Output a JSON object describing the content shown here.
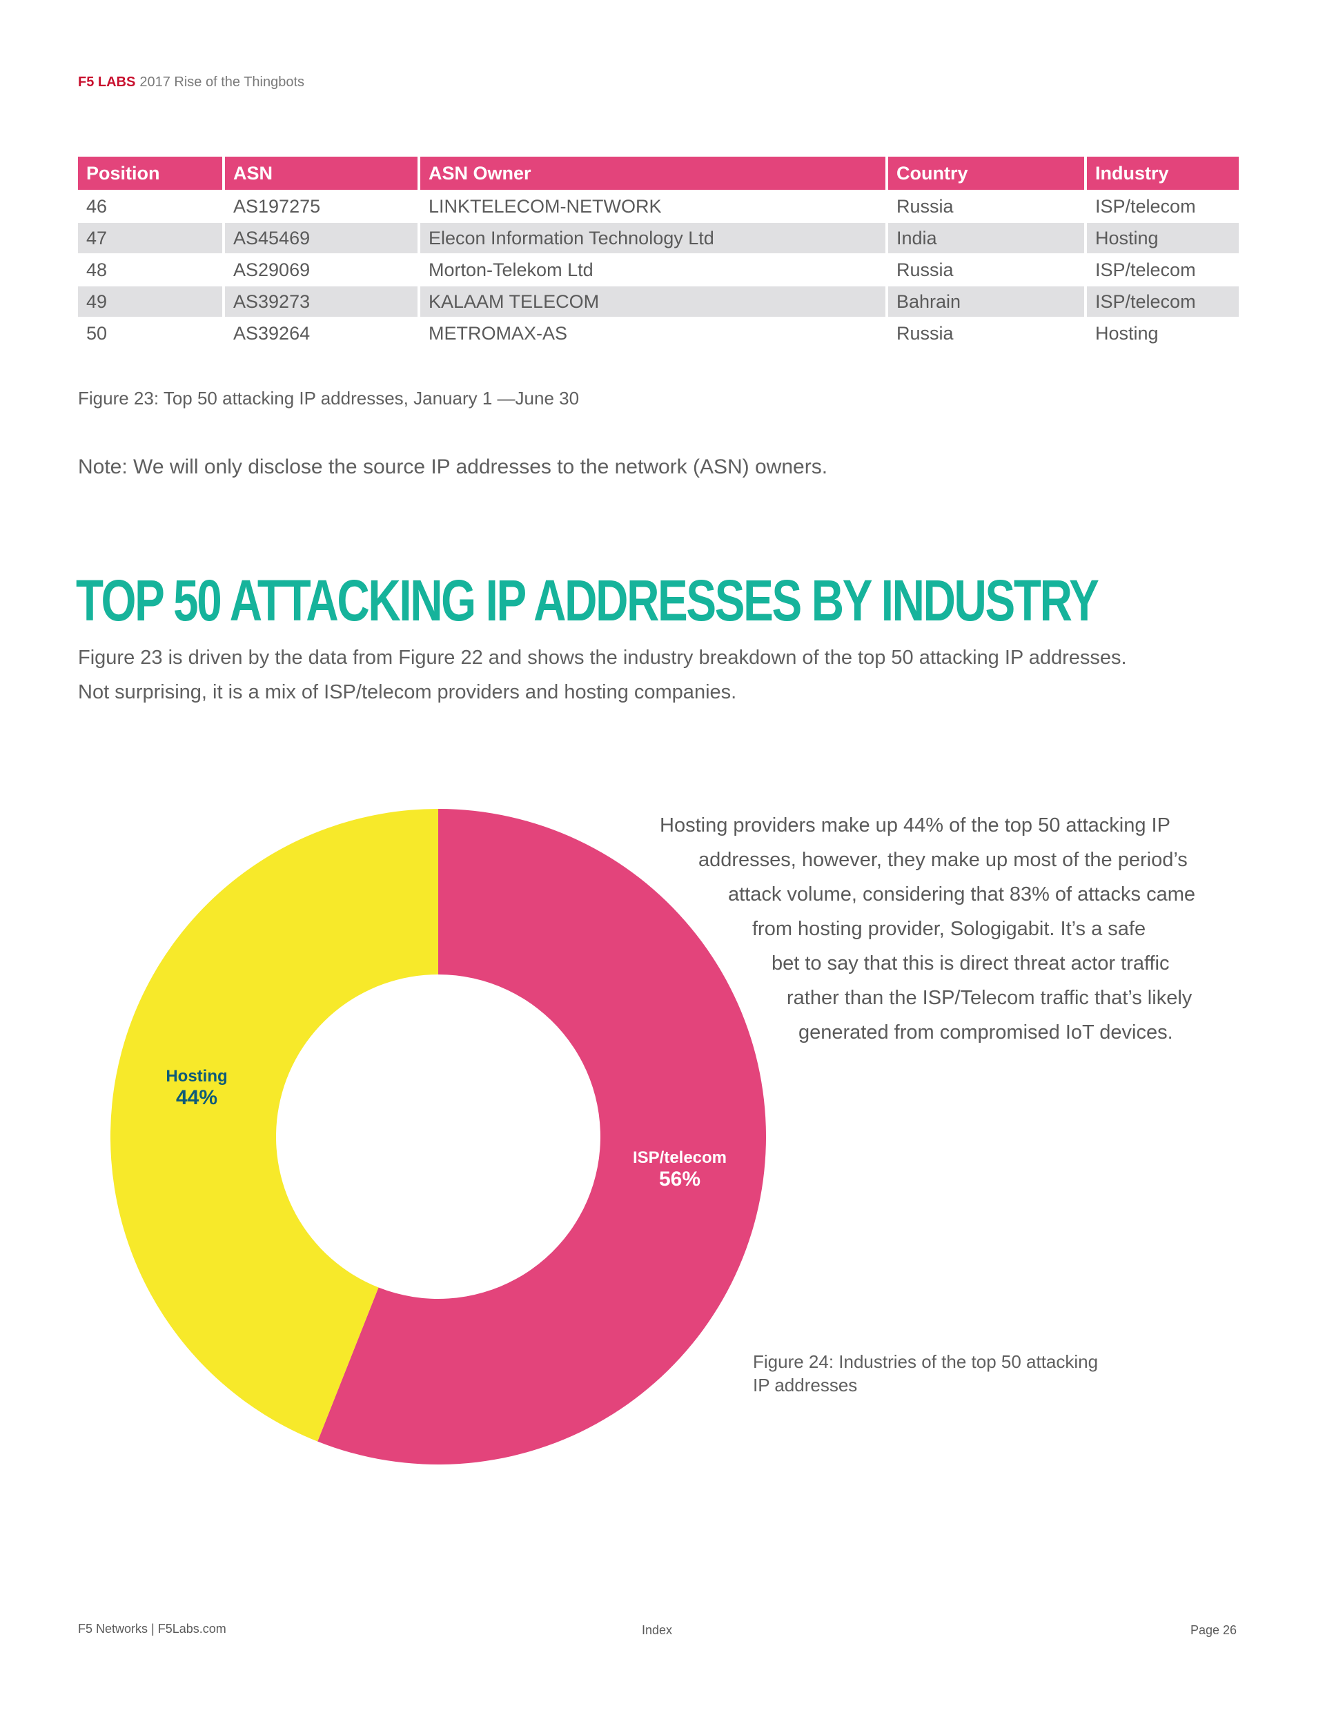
{
  "header": {
    "brand": "F5 LABS",
    "title": "2017 Rise of the Thingbots"
  },
  "table": {
    "columns": [
      "Position",
      "ASN",
      "ASN Owner",
      "Country",
      "Industry"
    ],
    "rows": [
      [
        "46",
        "AS197275",
        "LINKTELECOM-NETWORK",
        "Russia",
        "ISP/telecom"
      ],
      [
        "47",
        "AS45469",
        "Elecon Information Technology Ltd",
        "India",
        "Hosting"
      ],
      [
        "48",
        "AS29069",
        "Morton-Telekom Ltd",
        "Russia",
        "ISP/telecom"
      ],
      [
        "49",
        "AS39273",
        "KALAAM TELECOM",
        "Bahrain",
        "ISP/telecom"
      ],
      [
        "50",
        "AS39264",
        "METROMAX-AS",
        "Russia",
        "Hosting"
      ]
    ]
  },
  "figure23_caption": "Figure 23: Top 50 attacking IP addresses, January 1 —June 30",
  "note": "Note: We will only disclose the source IP addresses to the network (ASN) owners.",
  "section": {
    "title": "Top 50 Attacking IP Addresses by Industry",
    "intro_line1": "Figure 23 is driven by the data from Figure 22 and shows the industry breakdown of the top 50 attacking IP addresses.",
    "intro_line2": "Not surprising, it is a mix of ISP/telecom providers and hosting companies."
  },
  "callout_lines": [
    "Hosting providers make up 44% of the top 50 attacking IP",
    "addresses, however, they make up most of the period’s",
    "attack volume, considering that 83% of attacks came",
    "from hosting provider, Sologigabit. It’s a safe",
    "bet to say that this is direct threat actor traffic",
    "rather than the ISP/Telecom traffic that’s likely",
    "generated from compromised IoT devices."
  ],
  "figure24_caption_line1": "Figure 24: Industries of the top 50 attacking",
  "figure24_caption_line2": "IP addresses",
  "chart_data": {
    "type": "pie",
    "title": "Figure 24: Industries of the top 50 attacking IP addresses",
    "categories": [
      "ISP/telecom",
      "Hosting"
    ],
    "values": [
      56,
      44
    ],
    "labels": [
      "56%",
      "44%"
    ],
    "colors": [
      "#e3447b",
      "#f7e92a"
    ],
    "donut": true
  },
  "footer": {
    "left": "F5 Networks  |  F5Labs.com",
    "center": "Index",
    "right": "Page 26"
  }
}
